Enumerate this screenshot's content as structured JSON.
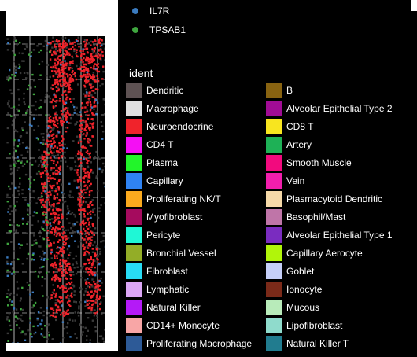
{
  "chart_data": {
    "type": "scatter",
    "title": "",
    "xlabel": "",
    "ylabel": "",
    "grid": true,
    "panel_background": "#000000",
    "legend_placement": "right",
    "gene_legend": [
      {
        "name": "IL7R",
        "color": "#3b7bbf"
      },
      {
        "name": "TPSAB1",
        "color": "#3fa63f"
      }
    ],
    "series": [
      {
        "name": "IL7R",
        "color": "#3b7bbf",
        "description": "sparse dots scattered across the tissue"
      },
      {
        "name": "TPSAB1",
        "color": "#3fa63f",
        "description": "sparse dots mostly on the left side"
      },
      {
        "name": "Neuroendocrine",
        "color": "#f0232b",
        "description": "dense red clusters in the central and right tissue strips"
      }
    ],
    "cell_type_legend": {
      "title": "ident",
      "columns": [
        [
          {
            "label": "Dendritic",
            "color": "#5e5253"
          },
          {
            "label": "Macrophage",
            "color": "#e0e0e0"
          },
          {
            "label": "Neuroendocrine",
            "color": "#f0232b"
          },
          {
            "label": "CD4 T",
            "color": "#f40ff4"
          },
          {
            "label": "Plasma",
            "color": "#22f52a"
          },
          {
            "label": "Capillary",
            "color": "#2f83f2"
          },
          {
            "label": "Proliferating NK/T",
            "color": "#fbaa1e"
          },
          {
            "label": "Myofibroblast",
            "color": "#a50b5e"
          },
          {
            "label": "Pericyte",
            "color": "#1ff7d6"
          },
          {
            "label": "Bronchial Vessel",
            "color": "#93ad27"
          },
          {
            "label": "Fibroblast",
            "color": "#28dcf5"
          },
          {
            "label": "Lymphatic",
            "color": "#dba6f5"
          },
          {
            "label": "Natural Killer",
            "color": "#b41af7"
          },
          {
            "label": "CD14+ Monocyte",
            "color": "#f8a6a6"
          },
          {
            "label": "Proliferating Macrophage",
            "color": "#2d5a97"
          }
        ],
        [
          {
            "label": "B",
            "color": "#886311"
          },
          {
            "label": "Alveolar Epithelial Type 2",
            "color": "#a10c95"
          },
          {
            "label": "CD8 T",
            "color": "#f8e51f"
          },
          {
            "label": "Artery",
            "color": "#1eb156"
          },
          {
            "label": "Smooth Muscle",
            "color": "#f20a7e"
          },
          {
            "label": "Vein",
            "color": "#f21eac"
          },
          {
            "label": "Plasmacytoid Dendritic",
            "color": "#f6d9a8"
          },
          {
            "label": "Basophil/Mast",
            "color": "#bf75a8"
          },
          {
            "label": "Alveolar Epithelial Type 1",
            "color": "#7a2cc0"
          },
          {
            "label": "Capillary Aerocyte",
            "color": "#b1f50a"
          },
          {
            "label": "Goblet",
            "color": "#c5cff8"
          },
          {
            "label": "Ionocyte",
            "color": "#7b2a19"
          },
          {
            "label": "Mucous",
            "color": "#b8ebba"
          },
          {
            "label": "Lipofibroblast",
            "color": "#8fdbcc"
          },
          {
            "label": "Natural Killer T",
            "color": "#217c8f"
          }
        ]
      ]
    }
  }
}
